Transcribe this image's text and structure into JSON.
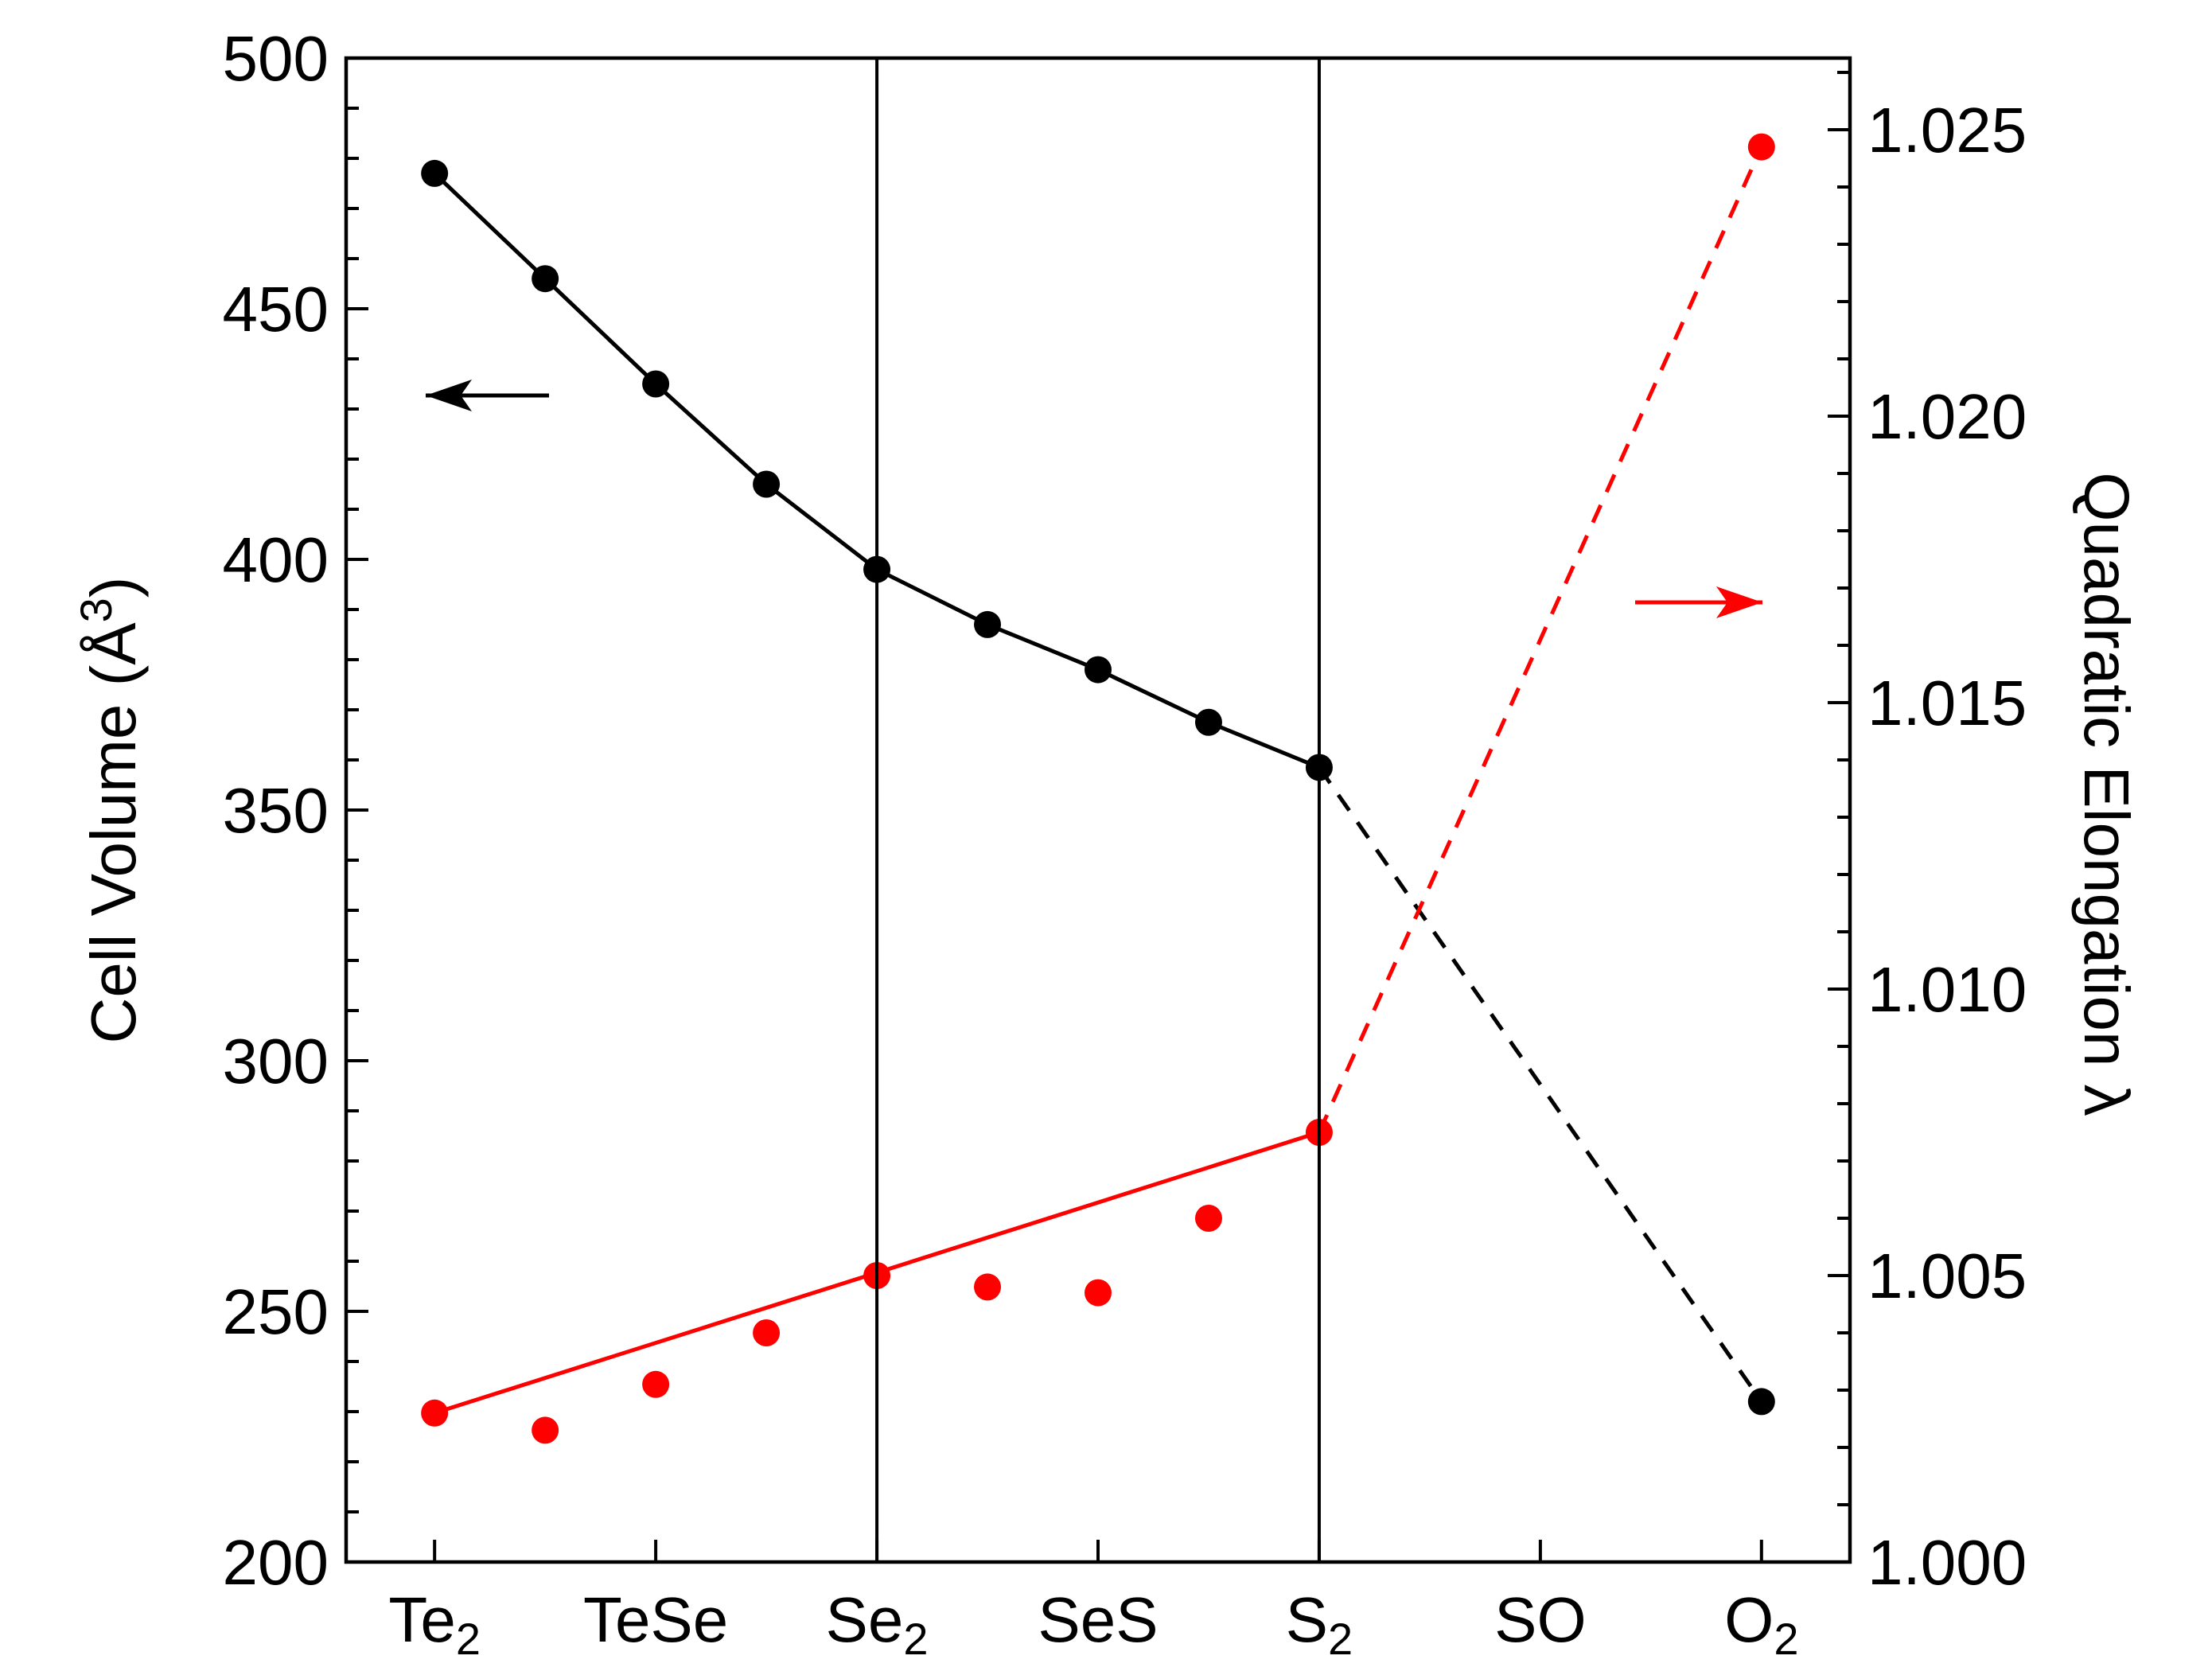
{
  "chart_data": {
    "type": "scatter",
    "x_tick_labels": [
      {
        "base": "Te",
        "sub": "2"
      },
      {
        "base": "TeSe",
        "sub": ""
      },
      {
        "base": "Se",
        "sub": "2"
      },
      {
        "base": "SeS",
        "sub": ""
      },
      {
        "base": "S",
        "sub": "2"
      },
      {
        "base": "SO",
        "sub": ""
      },
      {
        "base": "O",
        "sub": "2"
      }
    ],
    "x_tick_positions": [
      0,
      2,
      4,
      6,
      8,
      10,
      12
    ],
    "xlim": [
      -0.8,
      12.8
    ],
    "vertical_lines_at": [
      4,
      8
    ],
    "y_left": {
      "label_prefix": "Cell Volume (Å",
      "label_sup": "3",
      "label_suffix": ")",
      "lim": [
        200,
        500
      ],
      "ticks": [
        200,
        250,
        300,
        350,
        400,
        450,
        500
      ],
      "tick_labels": [
        "200",
        "250",
        "300",
        "350",
        "400",
        "450",
        "500"
      ],
      "minor_step": 10
    },
    "y_right": {
      "label": "Quadratic Elongation λ",
      "lim": [
        1.0,
        1.02625
      ],
      "ticks": [
        1.0,
        1.005,
        1.01,
        1.015,
        1.02,
        1.025
      ],
      "tick_labels": [
        "1.000",
        "1.005",
        "1.010",
        "1.015",
        "1.020",
        "1.025"
      ],
      "minor_step": 0.001
    },
    "series": [
      {
        "axis": "left",
        "color": "#000000",
        "points": [
          {
            "x": 0,
            "y": 477
          },
          {
            "x": 1,
            "y": 456
          },
          {
            "x": 2,
            "y": 435
          },
          {
            "x": 3,
            "y": 415
          },
          {
            "x": 4,
            "y": 398
          },
          {
            "x": 5,
            "y": 387
          },
          {
            "x": 6,
            "y": 378
          },
          {
            "x": 7,
            "y": 367.5
          },
          {
            "x": 8,
            "y": 358.5
          },
          {
            "x": 12,
            "y": 232
          }
        ],
        "solid_line_x": [
          0,
          1,
          2,
          3,
          4,
          5,
          6,
          7,
          8
        ],
        "dashed_line_x": [
          8,
          12
        ]
      },
      {
        "axis": "right",
        "color": "#ff0000",
        "points": [
          {
            "x": 0,
            "y": 1.0026
          },
          {
            "x": 1,
            "y": 1.0023
          },
          {
            "x": 2,
            "y": 1.0031
          },
          {
            "x": 3,
            "y": 1.004
          },
          {
            "x": 4,
            "y": 1.005
          },
          {
            "x": 5,
            "y": 1.0048
          },
          {
            "x": 6,
            "y": 1.0047
          },
          {
            "x": 7,
            "y": 1.006
          },
          {
            "x": 8,
            "y": 1.0075
          },
          {
            "x": 12,
            "y": 1.0247
          }
        ],
        "fit_line": [
          {
            "x": 0,
            "y": 1.0026
          },
          {
            "x": 8,
            "y": 1.0075
          }
        ],
        "dashed_line_x": [
          8,
          12
        ]
      }
    ],
    "annotations": [
      {
        "type": "arrow",
        "direction": "left",
        "color": "#000000",
        "points_to_axis": "left"
      },
      {
        "type": "arrow",
        "direction": "right",
        "color": "#ff0000",
        "points_to_axis": "right"
      }
    ]
  }
}
